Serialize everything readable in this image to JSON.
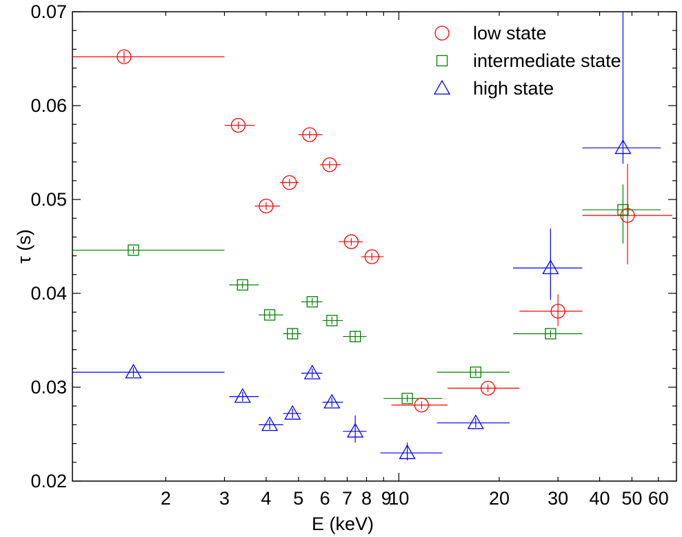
{
  "chart_data": {
    "type": "scatter",
    "xlabel": "E (keV)",
    "ylabel": "τ (s)",
    "x_scale": "log",
    "xlim": [
      1.05,
      68
    ],
    "ylim": [
      0.02,
      0.07
    ],
    "grid": false,
    "legend_position": "top-right",
    "x_tick_labels": [
      "2",
      "3",
      "4",
      "5",
      "6",
      "7",
      "8",
      "9",
      "10",
      "20",
      "30",
      "40",
      "50",
      "60"
    ],
    "y_tick_labels": [
      "0.02",
      "0.03",
      "0.04",
      "0.05",
      "0.06",
      "0.07"
    ],
    "series": [
      {
        "name": "low state",
        "marker": "circle",
        "color": "#ff0000",
        "points": [
          {
            "x": 1.5,
            "y": 0.0652,
            "xlo": 1.05,
            "xhi": 3.0,
            "ylo": 0.0646,
            "yhi": 0.0658
          },
          {
            "x": 3.3,
            "y": 0.0579,
            "xlo": 3.0,
            "xhi": 3.7,
            "ylo": 0.0575,
            "yhi": 0.0583
          },
          {
            "x": 4.0,
            "y": 0.0493,
            "xlo": 3.7,
            "xhi": 4.4,
            "ylo": 0.0489,
            "yhi": 0.0497
          },
          {
            "x": 4.7,
            "y": 0.0518,
            "xlo": 4.4,
            "xhi": 5.0,
            "ylo": 0.0514,
            "yhi": 0.0522
          },
          {
            "x": 5.4,
            "y": 0.0569,
            "xlo": 5.0,
            "xhi": 5.9,
            "ylo": 0.0565,
            "yhi": 0.0573
          },
          {
            "x": 6.2,
            "y": 0.0537,
            "xlo": 5.8,
            "xhi": 6.7,
            "ylo": 0.0533,
            "yhi": 0.0541
          },
          {
            "x": 7.2,
            "y": 0.0455,
            "xlo": 6.6,
            "xhi": 7.8,
            "ylo": 0.0451,
            "yhi": 0.0459
          },
          {
            "x": 8.3,
            "y": 0.0439,
            "xlo": 7.7,
            "xhi": 9.0,
            "ylo": 0.0435,
            "yhi": 0.0443
          },
          {
            "x": 11.7,
            "y": 0.0281,
            "xlo": 9.5,
            "xhi": 14.0,
            "ylo": 0.0277,
            "yhi": 0.0285
          },
          {
            "x": 18.5,
            "y": 0.0299,
            "xlo": 14.0,
            "xhi": 23.0,
            "ylo": 0.0295,
            "yhi": 0.0303
          },
          {
            "x": 30.0,
            "y": 0.0381,
            "xlo": 23.0,
            "xhi": 35.5,
            "ylo": 0.0365,
            "yhi": 0.0399
          },
          {
            "x": 48.5,
            "y": 0.0483,
            "xlo": 35.5,
            "xhi": 66.0,
            "ylo": 0.0431,
            "yhi": 0.0538
          }
        ]
      },
      {
        "name": "intermediate state",
        "marker": "square",
        "color": "#008000",
        "points": [
          {
            "x": 1.6,
            "y": 0.0446,
            "xlo": 1.05,
            "xhi": 3.0,
            "ylo": 0.0442,
            "yhi": 0.045
          },
          {
            "x": 3.4,
            "y": 0.0409,
            "xlo": 3.1,
            "xhi": 3.8,
            "ylo": 0.0405,
            "yhi": 0.0413
          },
          {
            "x": 4.1,
            "y": 0.0377,
            "xlo": 3.8,
            "xhi": 4.5,
            "ylo": 0.0373,
            "yhi": 0.0381
          },
          {
            "x": 4.8,
            "y": 0.0357,
            "xlo": 4.5,
            "xhi": 5.1,
            "ylo": 0.0351,
            "yhi": 0.0363
          },
          {
            "x": 5.5,
            "y": 0.0391,
            "xlo": 5.1,
            "xhi": 5.9,
            "ylo": 0.0387,
            "yhi": 0.0395
          },
          {
            "x": 6.3,
            "y": 0.0371,
            "xlo": 5.9,
            "xhi": 6.8,
            "ylo": 0.0367,
            "yhi": 0.0375
          },
          {
            "x": 7.4,
            "y": 0.0354,
            "xlo": 6.8,
            "xhi": 8.0,
            "ylo": 0.0348,
            "yhi": 0.036
          },
          {
            "x": 10.6,
            "y": 0.0288,
            "xlo": 9.0,
            "xhi": 13.5,
            "ylo": 0.0284,
            "yhi": 0.0292
          },
          {
            "x": 17.0,
            "y": 0.0316,
            "xlo": 13.0,
            "xhi": 21.5,
            "ylo": 0.0312,
            "yhi": 0.032
          },
          {
            "x": 28.5,
            "y": 0.0357,
            "xlo": 22.0,
            "xhi": 35.5,
            "ylo": 0.0353,
            "yhi": 0.0361
          },
          {
            "x": 47.0,
            "y": 0.0489,
            "xlo": 35.5,
            "xhi": 61.0,
            "ylo": 0.0453,
            "yhi": 0.0516
          }
        ]
      },
      {
        "name": "high state",
        "marker": "triangle",
        "color": "#0000ff",
        "points": [
          {
            "x": 1.6,
            "y": 0.0316,
            "xlo": 1.05,
            "xhi": 3.0,
            "ylo": 0.0311,
            "yhi": 0.0321
          },
          {
            "x": 3.4,
            "y": 0.029,
            "xlo": 3.1,
            "xhi": 3.8,
            "ylo": 0.0285,
            "yhi": 0.0295
          },
          {
            "x": 4.1,
            "y": 0.026,
            "xlo": 3.8,
            "xhi": 4.5,
            "ylo": 0.0255,
            "yhi": 0.0265
          },
          {
            "x": 4.8,
            "y": 0.0272,
            "xlo": 4.5,
            "xhi": 5.1,
            "ylo": 0.0267,
            "yhi": 0.0277
          },
          {
            "x": 5.5,
            "y": 0.0315,
            "xlo": 5.1,
            "xhi": 5.9,
            "ylo": 0.031,
            "yhi": 0.032
          },
          {
            "x": 6.3,
            "y": 0.0284,
            "xlo": 5.9,
            "xhi": 6.8,
            "ylo": 0.0279,
            "yhi": 0.0289
          },
          {
            "x": 7.4,
            "y": 0.0253,
            "xlo": 6.8,
            "xhi": 8.0,
            "ylo": 0.0241,
            "yhi": 0.027
          },
          {
            "x": 10.6,
            "y": 0.023,
            "xlo": 8.8,
            "xhi": 13.5,
            "ylo": 0.0222,
            "yhi": 0.0241
          },
          {
            "x": 17.0,
            "y": 0.0262,
            "xlo": 13.0,
            "xhi": 21.5,
            "ylo": 0.0257,
            "yhi": 0.0267
          },
          {
            "x": 28.5,
            "y": 0.0427,
            "xlo": 22.0,
            "xhi": 35.5,
            "ylo": 0.0393,
            "yhi": 0.0469
          },
          {
            "x": 47.0,
            "y": 0.0555,
            "xlo": 35.5,
            "xhi": 61.0,
            "ylo": 0.0538,
            "yhi": 0.07
          }
        ]
      }
    ]
  }
}
